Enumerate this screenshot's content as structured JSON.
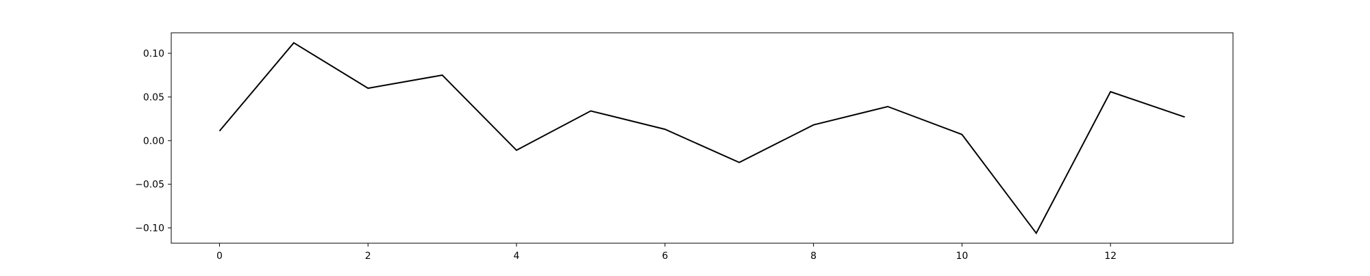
{
  "chart_data": {
    "type": "line",
    "title": "",
    "xlabel": "",
    "ylabel": "",
    "x": [
      0,
      1,
      2,
      3,
      4,
      5,
      6,
      7,
      8,
      9,
      10,
      11,
      12,
      13
    ],
    "series": [
      {
        "values": [
          0.011,
          0.112,
          0.06,
          0.075,
          -0.011,
          0.034,
          0.013,
          -0.025,
          0.018,
          0.039,
          0.007,
          -0.106,
          0.056,
          0.027
        ],
        "color": "#000000"
      }
    ],
    "xlim": [
      -0.65,
      13.65
    ],
    "ylim": [
      -0.1175,
      0.1235
    ],
    "xticks": [
      0,
      2,
      4,
      6,
      8,
      10,
      12
    ],
    "xtick_labels": [
      "0",
      "2",
      "4",
      "6",
      "8",
      "10",
      "12"
    ],
    "yticks": [
      -0.1,
      -0.05,
      0.0,
      0.05,
      0.1
    ],
    "ytick_labels": [
      "−0.10",
      "−0.05",
      "0.00",
      "0.05",
      "0.10"
    ],
    "grid": false,
    "legend": "none"
  }
}
